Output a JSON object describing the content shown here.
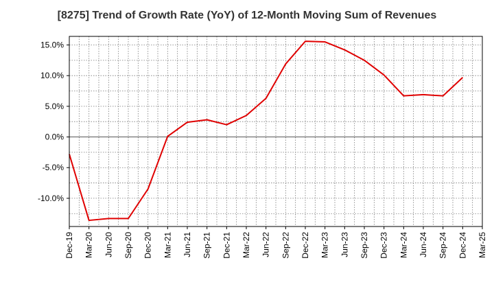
{
  "chart_data": {
    "type": "line",
    "title": "[8275]  Trend of Growth Rate (YoY) of 12-Month Moving Sum of Revenues",
    "xlabel": "",
    "ylabel": "",
    "x_tick_labels": [
      "Dec-19",
      "Mar-20",
      "Jun-20",
      "Sep-20",
      "Dec-20",
      "Mar-21",
      "Jun-21",
      "Sep-21",
      "Dec-21",
      "Mar-22",
      "Jun-22",
      "Sep-22",
      "Dec-22",
      "Mar-23",
      "Jun-23",
      "Sep-23",
      "Dec-23",
      "Mar-24",
      "Jun-24",
      "Sep-24",
      "Dec-24",
      "Mar-25"
    ],
    "y_ticks": [
      -10.0,
      -5.0,
      0.0,
      5.0,
      10.0,
      15.0
    ],
    "y_tick_labels": [
      "-10.0%",
      "-5.0%",
      "0.0%",
      "5.0%",
      "10.0%",
      "15.0%"
    ],
    "ylim": [
      -14.6,
      16.4
    ],
    "grid": true,
    "series": [
      {
        "color": "#e00000",
        "x": [
          "Dec-19",
          "Mar-20",
          "Jun-20",
          "Sep-20",
          "Dec-20",
          "Mar-21",
          "Jun-21",
          "Sep-21",
          "Dec-21",
          "Mar-22",
          "Jun-22",
          "Sep-22",
          "Dec-22",
          "Mar-23",
          "Jun-23",
          "Sep-23",
          "Dec-23",
          "Mar-24",
          "Jun-24",
          "Sep-24",
          "Dec-24"
        ],
        "values": [
          -2.8,
          -13.6,
          -13.3,
          -13.3,
          -8.5,
          0.1,
          2.4,
          2.8,
          2.0,
          3.5,
          6.3,
          11.9,
          15.6,
          15.5,
          14.2,
          12.5,
          10.1,
          6.7,
          6.9,
          6.7,
          9.7
        ]
      }
    ]
  }
}
